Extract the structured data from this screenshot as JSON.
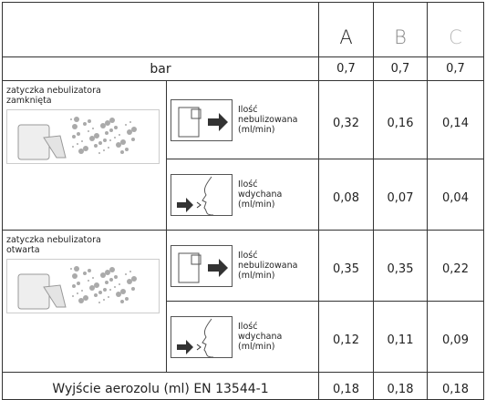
{
  "header": {
    "columns": [
      "A",
      "B",
      "C"
    ]
  },
  "bar_row": {
    "label": "bar",
    "values": [
      "0,7",
      "0,7",
      "0,7"
    ]
  },
  "sections": [
    {
      "label": "zatyczka nebulizatora zamknięta",
      "rows": [
        {
          "text": "Ilość nebulizowana (ml/min)",
          "values": [
            "0,32",
            "0,16",
            "0,14"
          ]
        },
        {
          "text": "Ilość wdychana (ml/min)",
          "values": [
            "0,08",
            "0,07",
            "0,04"
          ]
        }
      ]
    },
    {
      "label": "zatyczka nebulizatora otwarta",
      "rows": [
        {
          "text": "Ilość nebulizowana (ml/min)",
          "values": [
            "0,35",
            "0,35",
            "0,22"
          ]
        },
        {
          "text": "Ilość wdychana (ml/min)",
          "values": [
            "0,12",
            "0,11",
            "0,09"
          ]
        }
      ]
    }
  ],
  "footer": {
    "label": "Wyjście aerozolu (ml) EN 13544-1",
    "values": [
      "0,18",
      "0,18",
      "0,18"
    ]
  }
}
